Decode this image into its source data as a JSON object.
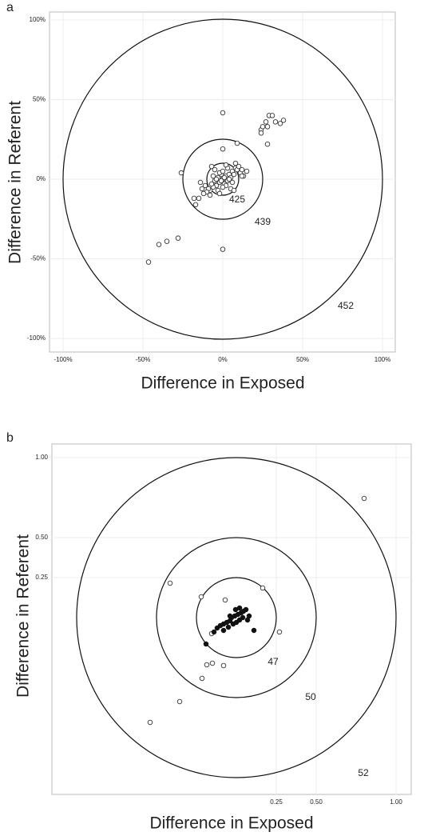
{
  "chart_data": [
    {
      "type": "scatter",
      "label": "a",
      "xlabel": "Difference in Exposed",
      "ylabel": "Difference in Referent",
      "xlim": [
        -108.5,
        108
      ],
      "ylim": [
        -108.5,
        105
      ],
      "xticks": [
        {
          "value": -100,
          "label": "-100%"
        },
        {
          "value": -50,
          "label": "-50%"
        },
        {
          "value": 0,
          "label": "0%"
        },
        {
          "value": 50,
          "label": "50%"
        },
        {
          "value": 100,
          "label": "100%"
        }
      ],
      "yticks": [
        {
          "value": -100,
          "label": "-100%"
        },
        {
          "value": -50,
          "label": "-50%"
        },
        {
          "value": 0,
          "label": "0%"
        },
        {
          "value": 50,
          "label": "50%"
        },
        {
          "value": 100,
          "label": "100%"
        }
      ],
      "grid": true,
      "circles": [
        {
          "radius": 10,
          "label": 425
        },
        {
          "radius": 25,
          "label": 439
        },
        {
          "radius": 100,
          "label": 452
        }
      ],
      "series": [
        {
          "marker": "open",
          "color": "#333333",
          "x": [
            -2,
            0,
            2,
            -4,
            4,
            -6,
            6,
            -8,
            8,
            -3,
            3,
            -1,
            1,
            -5,
            5,
            -7,
            7,
            -9,
            9,
            -10,
            10,
            -2,
            2,
            -4,
            4,
            0,
            0,
            -6,
            6,
            -11,
            11,
            -8,
            8,
            -12,
            12,
            -3,
            3,
            -5,
            5,
            1,
            -1,
            13,
            -13,
            2,
            -2,
            7,
            -7,
            -14,
            15,
            0,
            24,
            24,
            25,
            27,
            29,
            28,
            31,
            33,
            36,
            38,
            28,
            9,
            0,
            -46.5,
            -40,
            -35,
            -28,
            0,
            -17,
            -18,
            -15,
            -26,
            12
          ],
          "y": [
            -2,
            0,
            2,
            -4,
            3,
            -5,
            5,
            -7,
            7,
            1,
            -1,
            3,
            -3,
            -1,
            1,
            -3,
            3,
            -6,
            6,
            -8,
            8,
            4,
            -4,
            0,
            0,
            5,
            -5,
            2,
            -2,
            -4,
            4,
            -10,
            10,
            -9,
            6,
            -7,
            7,
            6,
            -6,
            1,
            -1,
            2,
            -6,
            9,
            -9,
            -7,
            8,
            -2,
            5,
            41.7,
            31,
            29,
            33,
            36,
            40,
            33,
            40,
            36,
            35,
            37,
            22,
            22.6,
            19,
            -52,
            -41,
            -39,
            -37,
            -44,
            -16,
            -12,
            -12,
            4,
            2
          ]
        }
      ]
    },
    {
      "type": "scatter",
      "label": "b",
      "xlabel": "Difference in Exposed",
      "ylabel": "Difference in Referent",
      "xlim": [
        -1.155,
        1.095
      ],
      "ylim": [
        -1.105,
        1.085
      ],
      "xticks": [
        0.25,
        {
          "value": 0.5,
          "label": "0.50"
        },
        {
          "value": 1,
          "label": "1.00"
        }
      ],
      "yticks": [
        0.25,
        {
          "value": 0.5,
          "label": "0.50"
        },
        {
          "value": 1,
          "label": "1.00"
        }
      ],
      "grid": true,
      "circles": [
        {
          "radius": 0.25,
          "label": 47
        },
        {
          "radius": 0.5,
          "label": 50
        },
        {
          "radius": 1,
          "label": 52
        }
      ],
      "series": [
        {
          "marker": "open",
          "color": "#333333",
          "x": [
            0.8,
            -0.415,
            -0.22,
            -0.07,
            0.165,
            0.27,
            -0.15,
            -0.185,
            -0.215,
            -0.08,
            -0.355,
            -0.54,
            -0.155
          ],
          "y": [
            0.745,
            0.215,
            0.13,
            0.11,
            0.185,
            -0.09,
            -0.285,
            -0.295,
            -0.38,
            -0.3,
            -0.525,
            -0.655,
            -0.1
          ]
        },
        {
          "marker": "filled",
          "color": "#111111",
          "x": [
            -0.19,
            -0.14,
            -0.12,
            -0.1,
            -0.08,
            -0.06,
            -0.04,
            -0.03,
            -0.01,
            0.01,
            0.03,
            0.045,
            0.06,
            0.02,
            -0.02,
            -0.05,
            0,
            0.04,
            0.11,
            0.08,
            0.07,
            -0.08,
            -0.005,
            -0.04,
            0.02
          ],
          "y": [
            -0.165,
            -0.09,
            -0.065,
            -0.05,
            -0.04,
            -0.03,
            -0.02,
            0,
            0.01,
            0.02,
            0.03,
            0.04,
            0.05,
            -0.015,
            -0.04,
            -0.06,
            -0.03,
            0,
            -0.08,
            0.01,
            -0.015,
            -0.08,
            0.05,
            0.01,
            0.06
          ]
        }
      ]
    }
  ]
}
